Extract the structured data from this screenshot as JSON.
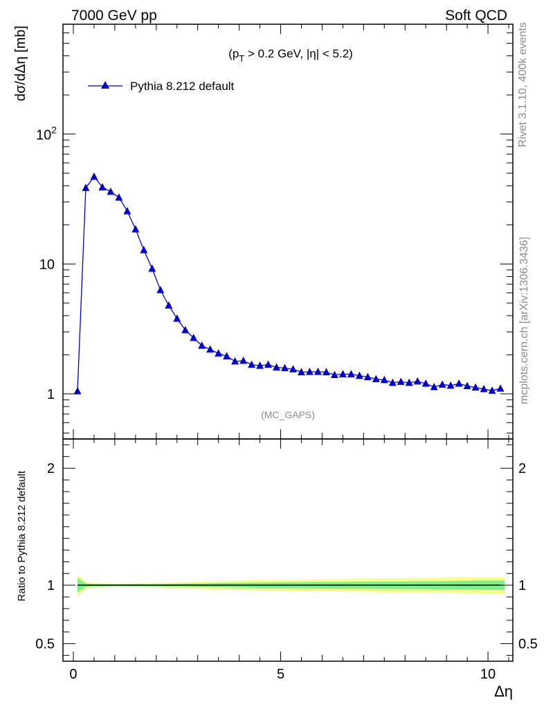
{
  "header": {
    "left": "7000 GeV pp",
    "right": "Soft QCD"
  },
  "side_text": {
    "top": "Rivet 3.1.10,  400k events",
    "bottom": "mcplots.cern.ch [arXiv:1306.3436]"
  },
  "colors": {
    "series": "#0000cc",
    "band_outer": "#f5ff8a",
    "band_inner": "#7cf08a",
    "axis": "#000000",
    "watermark": "#8c8c8c"
  },
  "chart_data": [
    {
      "type": "line",
      "panel": "main",
      "ylabel": "dσ/dΔη [mb]",
      "cut_label": "(p_T > 0.2 GeV, |η| < 5.2)",
      "analysis_tag": "(MC_GAPS)",
      "yscale": "log",
      "xlim": [
        -0.25,
        10.6
      ],
      "ylim": [
        0.45,
        700
      ],
      "ytick_labels": [
        "1",
        "10",
        "10^2"
      ],
      "ytick_values": [
        1,
        10,
        100
      ],
      "legend": "top-left",
      "marker": "triangle",
      "grid": false,
      "series": [
        {
          "name": "Pythia 8.212 default",
          "x": [
            0.1,
            0.3,
            0.5,
            0.7,
            0.9,
            1.1,
            1.3,
            1.5,
            1.7,
            1.9,
            2.1,
            2.3,
            2.5,
            2.7,
            2.9,
            3.1,
            3.3,
            3.5,
            3.7,
            3.9,
            4.1,
            4.3,
            4.5,
            4.7,
            4.9,
            5.1,
            5.3,
            5.5,
            5.7,
            5.9,
            6.1,
            6.3,
            6.5,
            6.7,
            6.9,
            7.1,
            7.3,
            7.5,
            7.7,
            7.9,
            8.1,
            8.3,
            8.5,
            8.7,
            8.9,
            9.1,
            9.3,
            9.5,
            9.7,
            9.9,
            10.1,
            10.3
          ],
          "values": [
            1.05,
            38.5,
            47.0,
            39.0,
            36.0,
            32.5,
            25.5,
            18.5,
            12.8,
            9.2,
            6.3,
            4.8,
            3.8,
            3.1,
            2.7,
            2.35,
            2.2,
            2.05,
            1.95,
            1.78,
            1.8,
            1.68,
            1.65,
            1.68,
            1.6,
            1.58,
            1.55,
            1.47,
            1.48,
            1.48,
            1.47,
            1.4,
            1.42,
            1.42,
            1.38,
            1.35,
            1.3,
            1.28,
            1.22,
            1.24,
            1.22,
            1.25,
            1.2,
            1.13,
            1.18,
            1.16,
            1.2,
            1.15,
            1.12,
            1.09,
            1.06,
            1.1
          ]
        }
      ]
    },
    {
      "type": "line",
      "panel": "ratio",
      "xlabel": "Δη",
      "ylabel": "Ratio to Pythia 8.212 default",
      "xlim": [
        -0.25,
        10.6
      ],
      "ylim": [
        0.35,
        2.25
      ],
      "ytick_labels": [
        "0.5",
        "1",
        "2"
      ],
      "ytick_values": [
        0.5,
        1,
        2
      ],
      "xtick_labels": [
        "0",
        "5",
        "10"
      ],
      "xtick_values": [
        0,
        5,
        10
      ],
      "series": [
        {
          "name": "Pythia 8.212 default",
          "x": [
            0.1,
            10.3
          ],
          "values": [
            1.0,
            1.0
          ]
        }
      ],
      "band_x": [
        0.1,
        0.3,
        0.5,
        1.0,
        2.0,
        3.0,
        4.0,
        5.0,
        6.0,
        7.0,
        8.0,
        9.0,
        10.0,
        10.4
      ],
      "band_outer": [
        0.09,
        0.03,
        0.02,
        0.015,
        0.018,
        0.03,
        0.04,
        0.045,
        0.05,
        0.055,
        0.06,
        0.065,
        0.07,
        0.07
      ],
      "band_inner": [
        0.06,
        0.015,
        0.01,
        0.008,
        0.01,
        0.015,
        0.02,
        0.025,
        0.028,
        0.03,
        0.032,
        0.035,
        0.04,
        0.04
      ]
    }
  ]
}
